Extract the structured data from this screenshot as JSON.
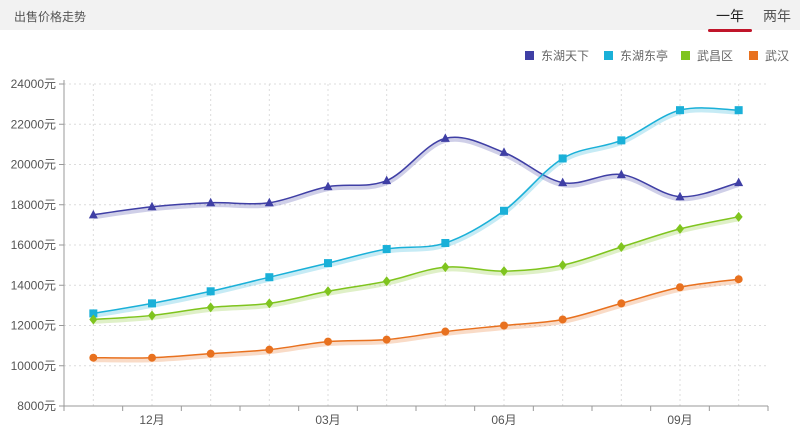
{
  "header": {
    "title": "出售价格走势",
    "tabs": [
      {
        "label": "一年",
        "active": true
      },
      {
        "label": "两年",
        "active": false
      }
    ]
  },
  "chart_data": {
    "type": "line",
    "title": "",
    "xlabel": "",
    "ylabel": "",
    "x_tick_labels": [
      "12月",
      "03月",
      "06月",
      "09月"
    ],
    "y_tick_labels": [
      "8000元",
      "10000元",
      "12000元",
      "14000元",
      "16000元",
      "18000元",
      "20000元",
      "22000元",
      "24000元"
    ],
    "ylim": [
      8000,
      24000
    ],
    "y_ticks": [
      8000,
      10000,
      12000,
      14000,
      16000,
      18000,
      20000,
      22000,
      24000
    ],
    "grid": true,
    "legend_position": "top-right",
    "series": [
      {
        "name": "东湖天下",
        "color": "#3f3fa5",
        "marker": "triangle",
        "values": [
          17500,
          17900,
          18100,
          18100,
          18900,
          19200,
          21300,
          20600,
          19100,
          19500,
          18400,
          19100
        ]
      },
      {
        "name": "东湖东亭",
        "color": "#1ab0d8",
        "marker": "square",
        "values": [
          12600,
          13100,
          13700,
          14400,
          15100,
          15800,
          16100,
          17700,
          20300,
          21200,
          22700,
          22700
        ]
      },
      {
        "name": "武昌区",
        "color": "#7fc41e",
        "marker": "diamond",
        "values": [
          12300,
          12500,
          12900,
          13100,
          13700,
          14200,
          14900,
          14700,
          15000,
          15900,
          16800,
          17400
        ]
      },
      {
        "name": "武汉",
        "color": "#e8711f",
        "marker": "circle",
        "values": [
          10400,
          10400,
          10600,
          10800,
          11200,
          11300,
          11700,
          12000,
          12300,
          13100,
          13900,
          14300
        ]
      }
    ]
  }
}
